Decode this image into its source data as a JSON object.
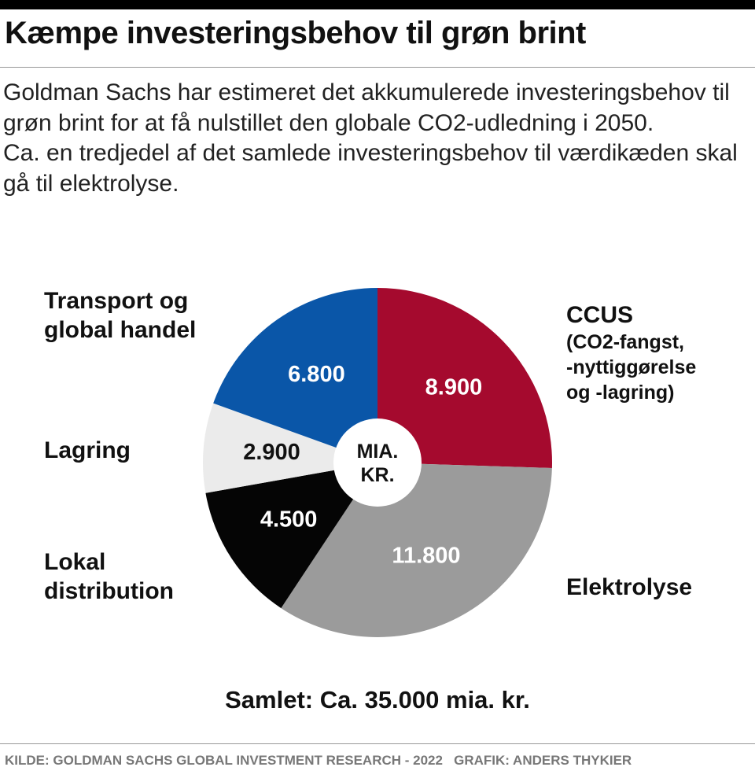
{
  "title": "Kæmpe investeringsbehov til grøn brint",
  "subtitle": [
    "Goldman Sachs har estimeret det akkumulerede investeringsbehov til grøn brint for at få nulstillet den globale CO2-udledning i 2050.",
    "Ca. en tredjedel af det samlede investeringsbehov til værdikæden skal gå til elektrolyse."
  ],
  "chart_data": {
    "type": "pie",
    "donut_center_label": [
      "MIA.",
      "KR."
    ],
    "slices": [
      {
        "name": "CCUS",
        "name_detail": "(CO2-fangst, -nyttiggørelse og -lagring)",
        "value": 8900,
        "value_label": "8.900",
        "color": "#a50a2e"
      },
      {
        "name": "Elektrolyse",
        "value": 11800,
        "value_label": "11.800",
        "color": "#9b9b9b"
      },
      {
        "name": "Lokal distribution",
        "value": 4500,
        "value_label": "4.500",
        "color": "#050505"
      },
      {
        "name": "Lagring",
        "value": 2900,
        "value_label": "2.900",
        "color": "#ebebeb"
      },
      {
        "name": "Transport og global handel",
        "value": 6800,
        "value_label": "6.800",
        "color": "#0a56a8"
      }
    ],
    "total_label": "Samlet: Ca. 35.000 mia. kr."
  },
  "labels": {
    "transport_line1": "Transport og",
    "transport_line2": "global handel",
    "ccus_line1": "CCUS",
    "ccus_sub1": "(CO2-fangst,",
    "ccus_sub2": "-nyttiggørelse",
    "ccus_sub3": "og -lagring)",
    "lagring": "Lagring",
    "lokal_line1": "Lokal",
    "lokal_line2": "distribution",
    "elektrolyse": "Elektrolyse"
  },
  "footer": {
    "source": "KILDE: GOLDMAN SACHS GLOBAL INVESTMENT RESEARCH - 2022",
    "credit": "GRAFIK: ANDERS THYKIER"
  }
}
